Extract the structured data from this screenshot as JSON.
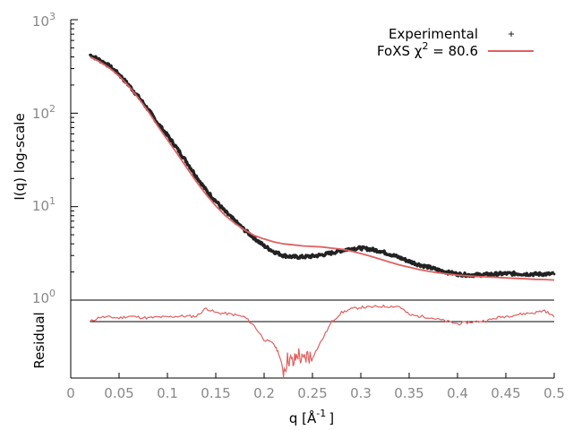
{
  "chart_data": {
    "type": "line",
    "y_scale": "log",
    "ylabel": "I(q) log-scale",
    "xlabel": "q [Å",
    "xlabel_exp": "-1",
    "xlabel_close": "]",
    "lower_ylabel": "Residual",
    "ylim": [
      1,
      1000
    ],
    "xlim": [
      0,
      0.5
    ],
    "y_ticks": [
      {
        "base": "10",
        "exp": "0"
      },
      {
        "base": "10",
        "exp": "1"
      },
      {
        "base": "10",
        "exp": "2"
      },
      {
        "base": "10",
        "exp": "3"
      }
    ],
    "x_ticks": [
      "0",
      "0.05",
      "0.1",
      "0.15",
      "0.2",
      "0.25",
      "0.3",
      "0.35",
      "0.4",
      "0.45",
      "0.5"
    ],
    "legend_position": "top-right",
    "colors": {
      "experimental": "#222222",
      "fit": "#e06060",
      "reference": "#000000"
    },
    "series": [
      {
        "name": "Experimental",
        "style": "points",
        "x": [
          0.02,
          0.03,
          0.04,
          0.05,
          0.06,
          0.07,
          0.08,
          0.09,
          0.1,
          0.11,
          0.12,
          0.13,
          0.14,
          0.15,
          0.16,
          0.17,
          0.18,
          0.19,
          0.2,
          0.21,
          0.22,
          0.23,
          0.24,
          0.25,
          0.26,
          0.27,
          0.28,
          0.29,
          0.3,
          0.31,
          0.32,
          0.33,
          0.34,
          0.35,
          0.36,
          0.37,
          0.38,
          0.39,
          0.4,
          0.41,
          0.42,
          0.43,
          0.44,
          0.45,
          0.46,
          0.47,
          0.48,
          0.49,
          0.5
        ],
        "y": [
          420,
          370,
          320,
          260,
          200,
          150,
          110,
          78,
          58,
          42,
          30,
          21,
          15,
          11.5,
          8.8,
          7.0,
          5.6,
          4.6,
          3.8,
          3.3,
          3.0,
          2.9,
          2.9,
          2.95,
          3.05,
          3.2,
          3.4,
          3.55,
          3.6,
          3.5,
          3.35,
          3.1,
          2.85,
          2.6,
          2.4,
          2.25,
          2.1,
          1.98,
          1.9,
          1.86,
          1.86,
          1.88,
          1.9,
          1.92,
          1.92,
          1.9,
          1.9,
          1.9,
          1.9
        ]
      },
      {
        "name": "FoXS χ",
        "name_exp": "2",
        "name_suffix": " = 80.6",
        "style": "line",
        "x": [
          0.02,
          0.03,
          0.04,
          0.05,
          0.06,
          0.07,
          0.08,
          0.09,
          0.1,
          0.11,
          0.12,
          0.13,
          0.14,
          0.15,
          0.16,
          0.17,
          0.18,
          0.19,
          0.2,
          0.21,
          0.22,
          0.23,
          0.24,
          0.25,
          0.26,
          0.27,
          0.28,
          0.29,
          0.3,
          0.31,
          0.32,
          0.33,
          0.34,
          0.35,
          0.36,
          0.37,
          0.38,
          0.39,
          0.4,
          0.41,
          0.42,
          0.43,
          0.44,
          0.45,
          0.46,
          0.47,
          0.48,
          0.49,
          0.5
        ],
        "y": [
          400,
          355,
          305,
          250,
          195,
          145,
          105,
          73,
          52,
          37,
          26,
          18.5,
          13.5,
          10.2,
          8.0,
          6.6,
          5.6,
          4.9,
          4.5,
          4.2,
          4.0,
          3.9,
          3.8,
          3.75,
          3.7,
          3.6,
          3.5,
          3.35,
          3.15,
          2.95,
          2.75,
          2.55,
          2.38,
          2.25,
          2.13,
          2.03,
          1.96,
          1.9,
          1.85,
          1.82,
          1.79,
          1.77,
          1.75,
          1.73,
          1.71,
          1.69,
          1.67,
          1.66,
          1.64
        ]
      }
    ],
    "residual": {
      "x": [
        0.02,
        0.03,
        0.04,
        0.05,
        0.06,
        0.07,
        0.08,
        0.09,
        0.1,
        0.11,
        0.12,
        0.13,
        0.14,
        0.15,
        0.16,
        0.17,
        0.18,
        0.19,
        0.2,
        0.21,
        0.215,
        0.22,
        0.225,
        0.23,
        0.235,
        0.24,
        0.245,
        0.25,
        0.26,
        0.27,
        0.28,
        0.29,
        0.3,
        0.31,
        0.32,
        0.33,
        0.34,
        0.35,
        0.36,
        0.37,
        0.38,
        0.39,
        0.4,
        0.41,
        0.42,
        0.43,
        0.44,
        0.45,
        0.46,
        0.47,
        0.48,
        0.49,
        0.5
      ],
      "y": [
        0.0,
        0.1,
        0.1,
        0.08,
        0.12,
        0.1,
        0.08,
        0.1,
        0.1,
        0.12,
        0.12,
        0.12,
        0.3,
        0.2,
        0.18,
        0.15,
        0.1,
        -0.1,
        -0.4,
        -0.5,
        -0.7,
        -1.1,
        -0.8,
        -0.95,
        -0.7,
        -0.9,
        -0.75,
        -0.8,
        -0.4,
        0.0,
        0.2,
        0.28,
        0.32,
        0.32,
        0.34,
        0.34,
        0.34,
        0.15,
        0.12,
        0.1,
        0.05,
        0.0,
        -0.05,
        -0.02,
        0.0,
        0.02,
        0.08,
        0.12,
        0.15,
        0.18,
        0.2,
        0.25,
        0.1
      ]
    }
  }
}
